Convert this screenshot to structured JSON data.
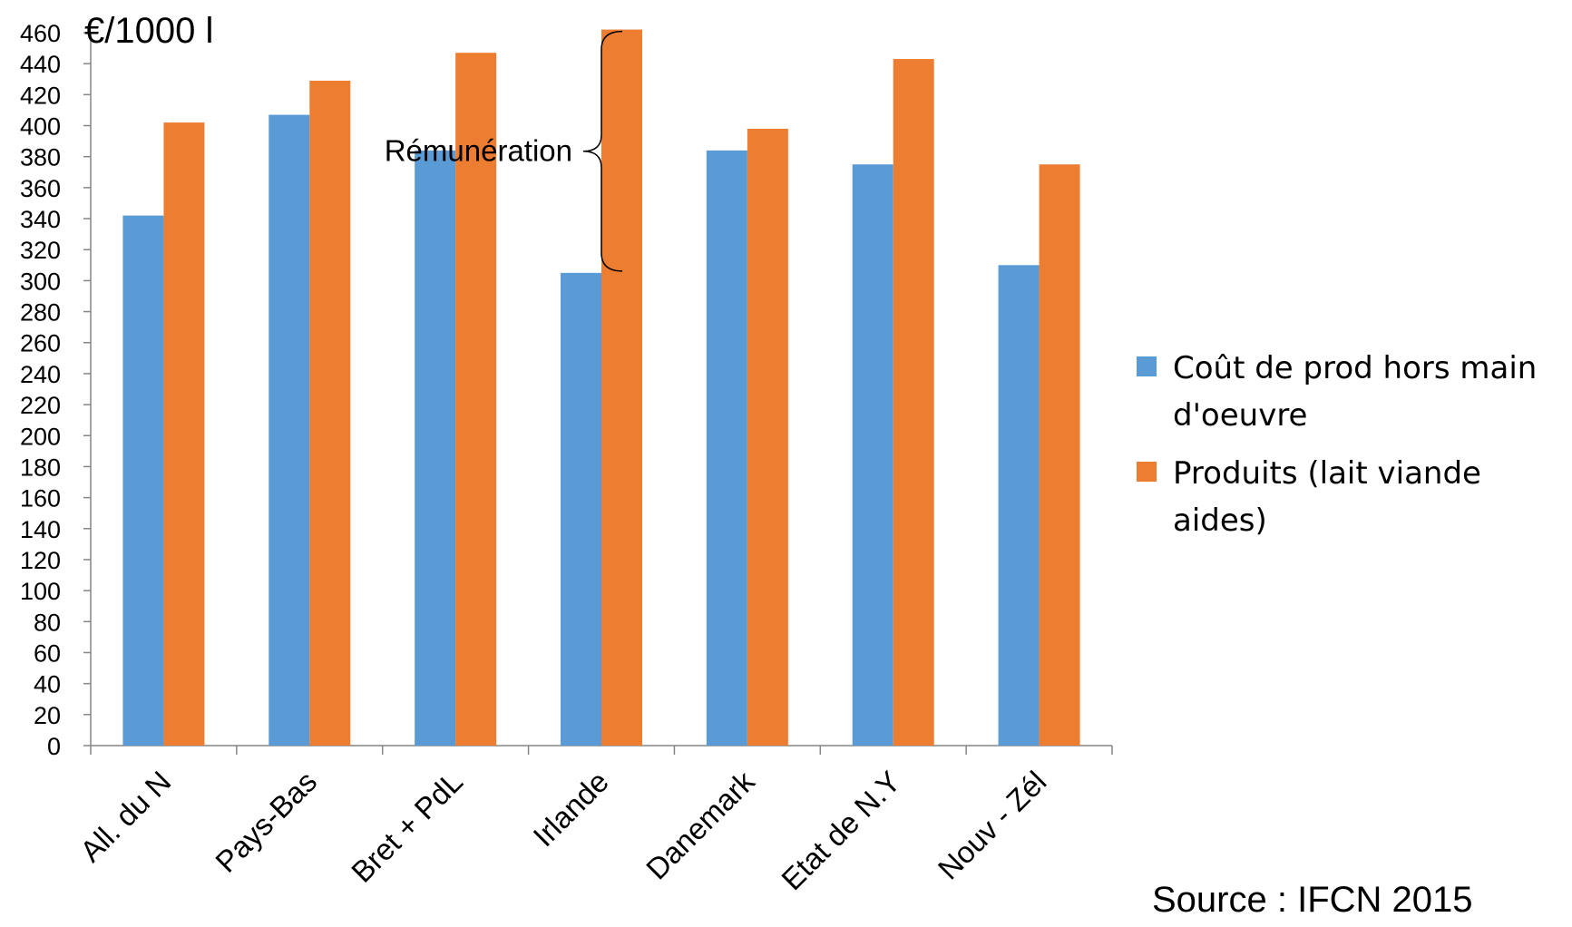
{
  "chart_data": {
    "type": "bar",
    "unit_label": "€/1000 l",
    "categories": [
      "All. du N",
      "Pays-Bas",
      "Bret + PdL",
      "Irlande",
      "Danemark",
      "Etat de N.Y",
      "Nouv - Zél"
    ],
    "series": [
      {
        "name": "Coût de prod hors main d'oeuvre",
        "legend_lines": [
          "Coût de prod hors main",
          "d'oeuvre"
        ],
        "color": "#5B9BD5",
        "values": [
          342,
          407,
          384,
          305,
          384,
          375,
          310
        ]
      },
      {
        "name": "Produits (lait viande aides)",
        "legend_lines": [
          "Produits (lait viande",
          "aides)"
        ],
        "color": "#ED7D31",
        "values": [
          402,
          429,
          447,
          462,
          398,
          443,
          375
        ]
      }
    ],
    "ylim": [
      0,
      460
    ],
    "ytick_step": 20,
    "grid": false,
    "legend_position": "right",
    "annotation": {
      "text": "Rémunération",
      "category": "Irlande",
      "from_value": 305,
      "to_value": 462
    },
    "source": "Source : IFCN 2015"
  }
}
